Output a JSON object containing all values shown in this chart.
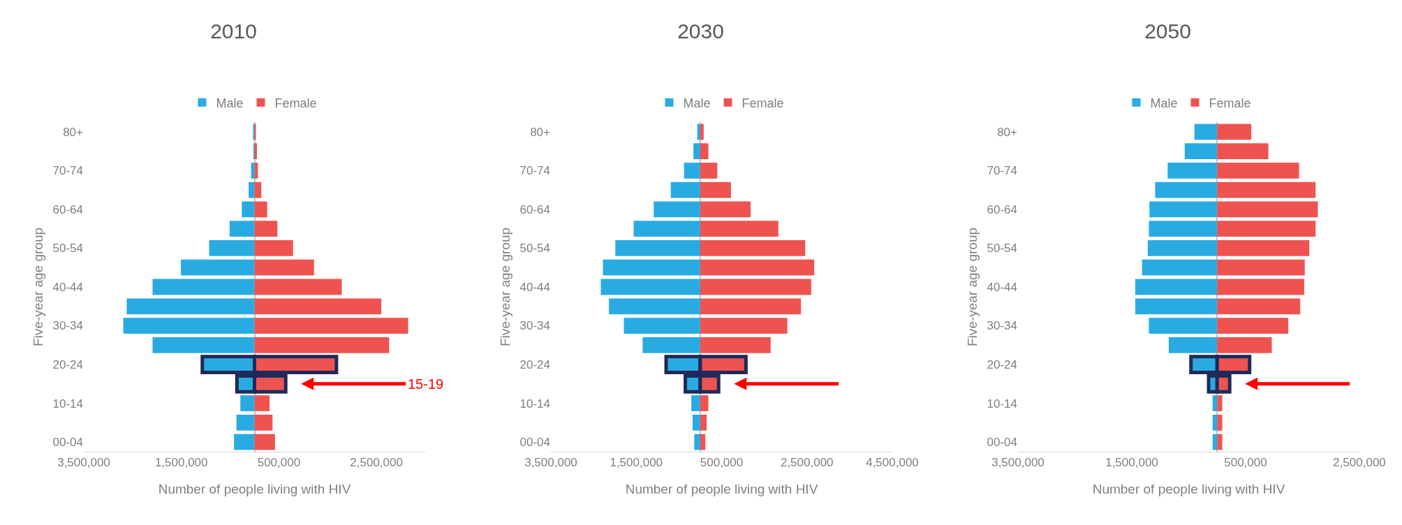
{
  "chart_data": [
    {
      "type": "bar",
      "orientation": "horizontal",
      "stacked": true,
      "title": "2010",
      "xlabel": "Number of people living with HIV",
      "ylabel": "Five-year age group",
      "legend": "top",
      "categories": [
        "80+",
        null,
        "70-74",
        null,
        "60-64",
        null,
        "50-54",
        null,
        "40-44",
        null,
        "30-34",
        null,
        "20-24",
        null,
        "10-14",
        null,
        "00-04"
      ],
      "series": [
        {
          "name": "Male",
          "color": "#29abe2",
          "values": [
            -30000,
            -20000,
            -70000,
            -120000,
            -260000,
            -510000,
            -930000,
            -1510000,
            -2090000,
            -2620000,
            -2690000,
            -2090000,
            -1070000,
            -360000,
            -290000,
            -370000,
            -420000
          ]
        },
        {
          "name": "Female",
          "color": "#ef5350",
          "values": [
            30000,
            50000,
            70000,
            140000,
            260000,
            470000,
            790000,
            1220000,
            1790000,
            2600000,
            3150000,
            2760000,
            1680000,
            640000,
            310000,
            370000,
            420000
          ]
        }
      ],
      "xlim": [
        -3500000,
        3500000
      ],
      "xticks": [
        {
          "value": -3500000,
          "label": "3,500,000"
        },
        {
          "value": -1500000,
          "label": "1,500,000"
        },
        {
          "value": 500000,
          "label": "500,000"
        },
        {
          "value": 2500000,
          "label": "2,500,000"
        }
      ],
      "annotations": [
        "15-19"
      ]
    },
    {
      "type": "bar",
      "orientation": "horizontal",
      "stacked": true,
      "title": "2030",
      "xlabel": "Number of people living with HIV",
      "ylabel": "Five-year age group",
      "legend": "top",
      "categories": [
        "80+",
        null,
        "70-74",
        null,
        "60-64",
        null,
        "50-54",
        null,
        "40-44",
        null,
        "30-34",
        null,
        "20-24",
        null,
        "10-14",
        null,
        "00-04"
      ],
      "series": [
        {
          "name": "Male",
          "color": "#29abe2",
          "values": [
            -70000,
            -160000,
            -380000,
            -690000,
            -1090000,
            -1560000,
            -1990000,
            -2280000,
            -2330000,
            -2140000,
            -1790000,
            -1350000,
            -800000,
            -350000,
            -210000,
            -180000,
            -140000
          ]
        },
        {
          "name": "Female",
          "color": "#ef5350",
          "values": [
            80000,
            190000,
            400000,
            720000,
            1180000,
            1830000,
            2460000,
            2670000,
            2600000,
            2360000,
            2040000,
            1650000,
            1070000,
            430000,
            190000,
            150000,
            120000
          ]
        }
      ],
      "xlim": [
        -3500000,
        4500000
      ],
      "xticks": [
        {
          "value": -3500000,
          "label": "3,500,000"
        },
        {
          "value": -1500000,
          "label": "1,500,000"
        },
        {
          "value": 500000,
          "label": "500,000"
        },
        {
          "value": 2500000,
          "label": "2,500,000"
        },
        {
          "value": 4500000,
          "label": "4,500,000"
        }
      ]
    },
    {
      "type": "bar",
      "orientation": "horizontal",
      "stacked": true,
      "title": "2050",
      "xlabel": "Number of people living with HIV",
      "ylabel": "Five-year age group",
      "legend": "top",
      "categories": [
        "80+",
        null,
        "70-74",
        null,
        "60-64",
        null,
        "50-54",
        null,
        "40-44",
        null,
        "30-34",
        null,
        "20-24",
        null,
        "10-14",
        null,
        "00-04"
      ],
      "series": [
        {
          "name": "Male",
          "color": "#29abe2",
          "values": [
            -400000,
            -570000,
            -870000,
            -1090000,
            -1190000,
            -1200000,
            -1220000,
            -1320000,
            -1440000,
            -1440000,
            -1200000,
            -850000,
            -460000,
            -150000,
            -80000,
            -80000,
            -80000
          ]
        },
        {
          "name": "Female",
          "color": "#ef5350",
          "values": [
            600000,
            900000,
            1440000,
            1730000,
            1770000,
            1730000,
            1620000,
            1540000,
            1530000,
            1460000,
            1250000,
            960000,
            570000,
            220000,
            90000,
            90000,
            90000
          ]
        }
      ],
      "xlim": [
        -3500000,
        2500000
      ],
      "xticks": [
        {
          "value": -3500000,
          "label": "3,500,000"
        },
        {
          "value": -1500000,
          "label": "1,500,000"
        },
        {
          "value": 500000,
          "label": "500,000"
        },
        {
          "value": 2500000,
          "label": "2,500,000"
        }
      ]
    }
  ]
}
